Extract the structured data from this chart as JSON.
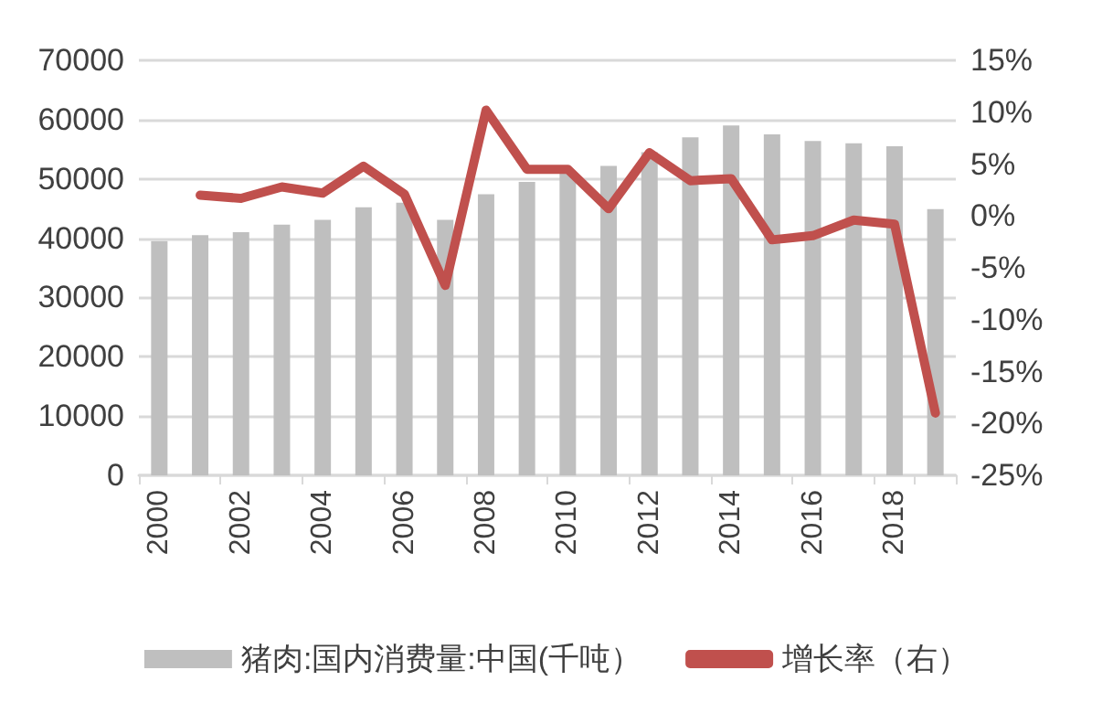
{
  "chart_data": {
    "type": "bar",
    "categories": [
      "2000",
      null,
      "2002",
      null,
      "2004",
      null,
      "2006",
      null,
      "2008",
      null,
      "2010",
      null,
      "2012",
      null,
      "2014",
      null,
      "2016",
      null,
      "2018",
      null
    ],
    "series": [
      {
        "name": "猪肉:国内消费量:中国(千吨）",
        "color": "#bfbfbf",
        "values": [
          39500,
          40500,
          41000,
          42300,
          43100,
          45200,
          46000,
          43100,
          47400,
          49500,
          51000,
          52200,
          54500,
          57000,
          59000,
          57500,
          56400,
          56000,
          55500,
          44900
        ]
      },
      {
        "name": "增长率（右）",
        "type": "line",
        "axis": "y2",
        "color": "#c0504d",
        "values": [
          null,
          2.0,
          1.7,
          2.8,
          2.2,
          4.8,
          2.1,
          -6.7,
          10.2,
          4.5,
          4.5,
          0.7,
          6.1,
          3.4,
          3.6,
          -2.3,
          -1.9,
          -0.4,
          -0.8,
          -19.0
        ]
      }
    ],
    "ylim": [
      0,
      70000
    ],
    "yticks": [
      0,
      10000,
      20000,
      30000,
      40000,
      50000,
      60000,
      70000
    ],
    "y2lim": [
      -25,
      15
    ],
    "y2ticks": [
      {
        "value": -25,
        "label": "-25%"
      },
      {
        "value": -20,
        "label": "-20%"
      },
      {
        "value": -15,
        "label": "-15%"
      },
      {
        "value": -10,
        "label": "-10%"
      },
      {
        "value": -5,
        "label": "-5%"
      },
      {
        "value": 0,
        "label": "0%"
      },
      {
        "value": 5,
        "label": "5%"
      },
      {
        "value": 10,
        "label": "10%"
      },
      {
        "value": 15,
        "label": "15%"
      }
    ],
    "grid": "y",
    "legend": "bottom",
    "marker": "none",
    "line_style": "solid"
  }
}
